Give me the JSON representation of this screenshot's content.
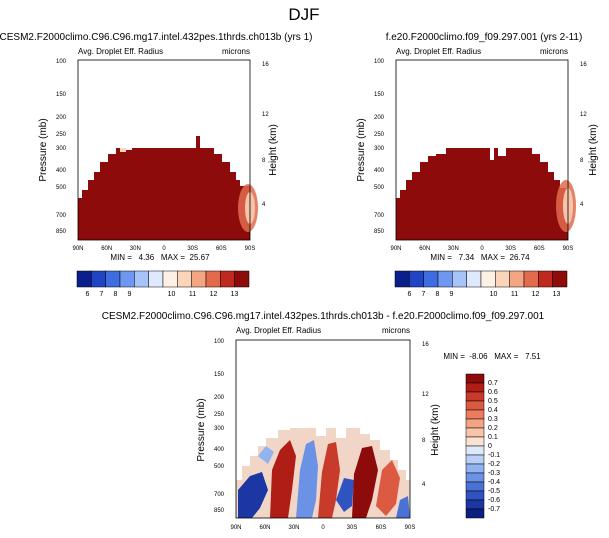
{
  "page_title": "DJF",
  "chart_data": [
    {
      "type": "heatmap",
      "title": "CESM2.F2000climo.C96.C96.mg17.intel.432pes.1thrds.ch013b (yrs 1)",
      "subtitle_left": "Avg. Droplet Eff. Radius",
      "subtitle_right": "microns",
      "xlabel": "",
      "ylabel": "Pressure (mb)",
      "y2label": "Height (km)",
      "x_tick_labels": [
        "90N",
        "60N",
        "30N",
        "0",
        "30S",
        "60S",
        "90S"
      ],
      "y_tick_labels": [
        "100",
        "150",
        "200",
        "250",
        "300",
        "400",
        "500",
        "700",
        "850"
      ],
      "y2_tick_labels": [
        "16",
        "12",
        "8",
        "4"
      ],
      "stats_text": "MIN =   4.36   MAX =  25.67",
      "min": 4.36,
      "max": 25.67,
      "colorbar_labels": [
        "6",
        "7",
        "8",
        "9",
        "10",
        "11",
        "12",
        "13"
      ],
      "colorbar_colors": [
        "#0a1f8c",
        "#1f45c4",
        "#3d6de0",
        "#6e97f2",
        "#a6c4fa",
        "#dfe9fd",
        "#fdf1e6",
        "#fbd4b9",
        "#f4a582",
        "#e26b4c",
        "#c0291e",
        "#8e0b0b"
      ],
      "colorbar_orientation": "horizontal"
    },
    {
      "type": "heatmap",
      "title": "f.e20.F2000climo.f09_f09.297.001 (yrs 2-11)",
      "subtitle_left": "Avg. Droplet Eff. Radius",
      "subtitle_right": "microns",
      "xlabel": "",
      "ylabel": "Pressure (mb)",
      "y2label": "Height (km)",
      "x_tick_labels": [
        "90N",
        "60N",
        "30N",
        "0",
        "30S",
        "60S",
        "90S"
      ],
      "y_tick_labels": [
        "100",
        "150",
        "200",
        "250",
        "300",
        "400",
        "500",
        "700",
        "850"
      ],
      "y2_tick_labels": [
        "16",
        "12",
        "8",
        "4"
      ],
      "stats_text": "MIN =   7.34   MAX =  26.74",
      "min": 7.34,
      "max": 26.74,
      "colorbar_labels": [
        "6",
        "7",
        "8",
        "9",
        "10",
        "11",
        "12",
        "13"
      ],
      "colorbar_colors": [
        "#0a1f8c",
        "#1f45c4",
        "#3d6de0",
        "#6e97f2",
        "#a6c4fa",
        "#dfe9fd",
        "#fdf1e6",
        "#fbd4b9",
        "#f4a582",
        "#e26b4c",
        "#c0291e",
        "#8e0b0b"
      ],
      "colorbar_orientation": "horizontal"
    },
    {
      "type": "heatmap",
      "title": "CESM2.F2000climo.C96.C96.mg17.intel.432pes.1thrds.ch013b - f.e20.F2000climo.f09_f09.297.001",
      "subtitle_left": "Avg. Droplet Eff. Radius",
      "subtitle_right": "microns",
      "xlabel": "",
      "ylabel": "Pressure (mb)",
      "y2label": "Height (km)",
      "x_tick_labels": [
        "90N",
        "60N",
        "30N",
        "0",
        "30S",
        "60S",
        "90S"
      ],
      "y_tick_labels": [
        "100",
        "150",
        "200",
        "250",
        "300",
        "400",
        "500",
        "700",
        "850"
      ],
      "y2_tick_labels": [
        "16",
        "12",
        "8",
        "4"
      ],
      "stats_text": "MIN =  -8.06   MAX =   7.51",
      "min": -8.06,
      "max": 7.51,
      "colorbar_labels": [
        "0.7",
        "0.6",
        "0.5",
        "0.4",
        "0.3",
        "0.2",
        "0.1",
        "0",
        "-0.1",
        "-0.2",
        "-0.3",
        "-0.4",
        "-0.5",
        "-0.6",
        "-0.7"
      ],
      "colorbar_colors": [
        "#8e0b0b",
        "#b01c16",
        "#c83a2a",
        "#dc5a42",
        "#eb7d5f",
        "#f4a384",
        "#f8c4a9",
        "#fbe3d4",
        "#dde8fb",
        "#b9d0f6",
        "#91b3ef",
        "#6b92e4",
        "#4a72d6",
        "#2f53c1",
        "#1c36a3",
        "#0c1f7e"
      ],
      "colorbar_orientation": "vertical"
    }
  ]
}
